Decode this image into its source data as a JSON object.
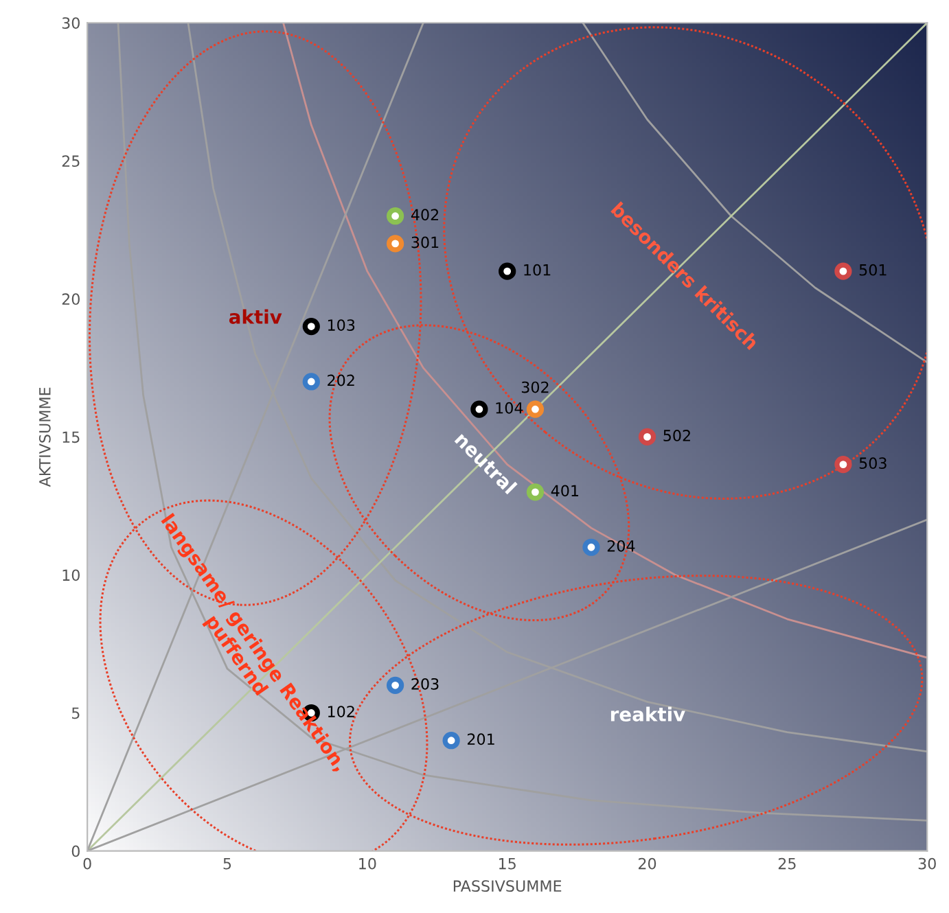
{
  "chart_data": {
    "type": "scatter",
    "xlabel": "PASSIVSUMME",
    "ylabel": "AKTIVSUMME",
    "xlim": [
      0,
      30
    ],
    "ylim": [
      0,
      30
    ],
    "xticks": [
      0,
      5,
      10,
      15,
      20,
      25,
      30
    ],
    "yticks": [
      0,
      5,
      10,
      15,
      20,
      25,
      30
    ],
    "grid": false,
    "legend": false,
    "series": [
      {
        "type": "line",
        "color": "#a0a0a0",
        "x": [
          1.1,
          1.5,
          2,
          3,
          5,
          8,
          12,
          18,
          24,
          30
        ],
        "values": [
          30,
          22,
          16.5,
          11,
          6.6,
          4.1,
          2.75,
          1.83,
          1.38,
          1.1
        ]
      },
      {
        "type": "line",
        "color": "#a0a0a0",
        "x": [
          3.6,
          4.5,
          6,
          8,
          11,
          15,
          20,
          25,
          30
        ],
        "values": [
          30,
          24,
          18,
          13.5,
          9.8,
          7.2,
          5.4,
          4.3,
          3.6
        ]
      },
      {
        "type": "line",
        "color": "#c89090",
        "x": [
          7,
          8,
          10,
          12,
          15,
          18,
          21,
          25,
          30
        ],
        "values": [
          30,
          26.3,
          21,
          17.5,
          14,
          11.7,
          10,
          8.4,
          7
        ]
      },
      {
        "type": "line",
        "color": "#a0a0a0",
        "x": [
          17.7,
          20,
          23,
          26,
          30
        ],
        "values": [
          30,
          26.5,
          23,
          20.4,
          17.7
        ]
      },
      {
        "type": "line",
        "color": "#b8c8a0",
        "x": [
          0,
          30
        ],
        "values": [
          0,
          30
        ]
      },
      {
        "type": "line",
        "color": "#a0a0a0",
        "x": [
          0,
          12
        ],
        "values": [
          0,
          30
        ]
      },
      {
        "type": "line",
        "color": "#a0a0a0",
        "x": [
          0,
          30
        ],
        "values": [
          0,
          12
        ]
      },
      {
        "color": "#000000",
        "marker": "circle",
        "x": [
          15,
          8,
          8,
          14
        ],
        "values": [
          21,
          5,
          19,
          16
        ]
      },
      {
        "color": "#3a7cc8",
        "marker": "circle",
        "x": [
          13,
          8,
          11,
          18
        ],
        "values": [
          4,
          17,
          6,
          11
        ]
      },
      {
        "color": "#f08a30",
        "marker": "circle",
        "x": [
          11,
          16
        ],
        "values": [
          22,
          16
        ]
      },
      {
        "color": "#8cc152",
        "marker": "circle",
        "x": [
          16,
          11
        ],
        "values": [
          13,
          23
        ]
      },
      {
        "color": "#d04848",
        "marker": "circle",
        "x": [
          27,
          20,
          27
        ],
        "values": [
          21,
          15,
          14
        ]
      }
    ],
    "annotations": [
      {
        "text": "101",
        "x": 15,
        "y": 21
      },
      {
        "text": "102",
        "x": 8,
        "y": 5
      },
      {
        "text": "103",
        "x": 8,
        "y": 19
      },
      {
        "text": "104",
        "x": 14,
        "y": 16
      },
      {
        "text": "201",
        "x": 13,
        "y": 4
      },
      {
        "text": "202",
        "x": 8,
        "y": 17
      },
      {
        "text": "203",
        "x": 11,
        "y": 6
      },
      {
        "text": "204",
        "x": 18,
        "y": 11
      },
      {
        "text": "301",
        "x": 11,
        "y": 22
      },
      {
        "text": "302",
        "x": 16,
        "y": 16
      },
      {
        "text": "401",
        "x": 16,
        "y": 13
      },
      {
        "text": "402",
        "x": 11,
        "y": 23
      },
      {
        "text": "501",
        "x": 27,
        "y": 21
      },
      {
        "text": "502",
        "x": 20,
        "y": 15
      },
      {
        "text": "503",
        "x": 27,
        "y": 14
      },
      "aktiv",
      "besonders kritisch",
      "neutral",
      "langsame/ geringe Reaktion,\npuffernd",
      "reaktiv"
    ]
  }
}
